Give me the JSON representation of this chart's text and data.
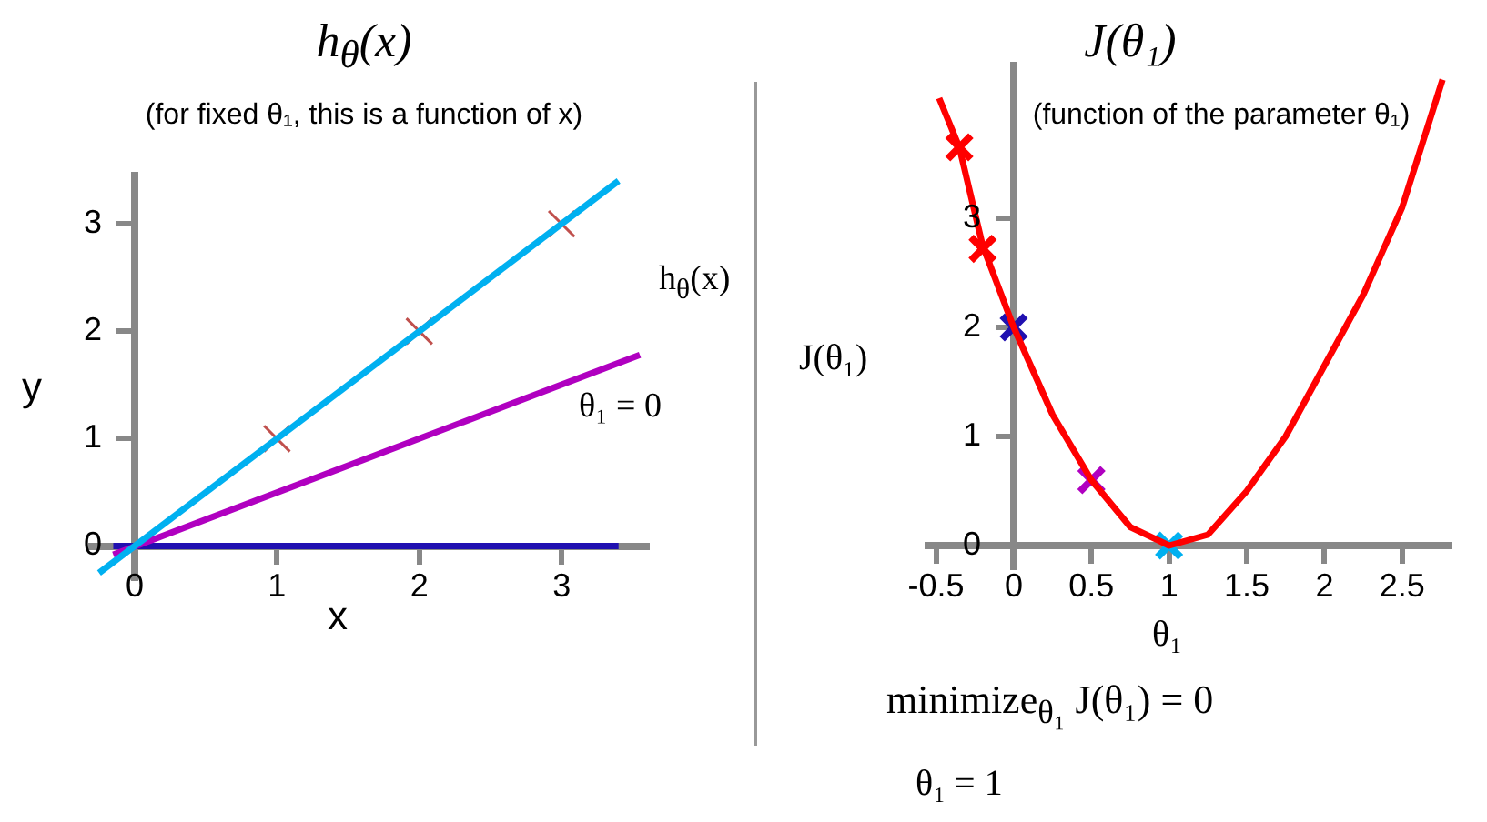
{
  "chart_data": [
    {
      "type": "line",
      "title": "h$_{θ}$(x)",
      "subtitle": "(for fixed θ₁, this is a function of x)",
      "xlabel": "x",
      "ylabel": "y",
      "annotations": [
        "h$_{θ}$(x)",
        "θ₁ = 0"
      ],
      "xlim": [
        -0.3,
        3.6
      ],
      "ylim": [
        -0.3,
        3.45
      ],
      "xticks": [
        0,
        1,
        2,
        3
      ],
      "yticks": [
        0,
        1,
        2,
        3
      ],
      "grid": false,
      "legend": false,
      "series": [
        {
          "color": "#00b0f0",
          "x": [
            -0.25,
            3.4
          ],
          "values": [
            -0.25,
            3.4
          ]
        },
        {
          "color": "#b000c0",
          "x": [
            -0.15,
            3.55
          ],
          "values": [
            -0.08,
            1.78
          ]
        },
        {
          "color": "#2010b0",
          "x": [
            -0.15,
            3.4
          ],
          "values": [
            0,
            0
          ]
        },
        {
          "type": "scatter",
          "marker": "cross",
          "color": "#c0504d",
          "x": [
            1,
            2,
            3
          ],
          "values": [
            1,
            2,
            3
          ]
        }
      ]
    },
    {
      "type": "line",
      "title": "J(θ₁)",
      "subtitle": "(function of the parameter θ₁)",
      "xlabel": "θ₁",
      "ylabel": "J(θ₁)",
      "annotations": [
        "minimize$_{θ₁}$ J(θ₁) = 0",
        "θ₁ = 1"
      ],
      "xlim": [
        -0.55,
        2.8
      ],
      "ylim": [
        -0.2,
        4.4
      ],
      "xticks": [
        -0.5,
        0,
        0.5,
        1,
        1.5,
        2,
        2.5
      ],
      "yticks": [
        0,
        1,
        2,
        3
      ],
      "grid": false,
      "legend": false,
      "series": [
        {
          "color": "#ff0000",
          "x": [
            -0.48,
            -0.35,
            -0.2,
            0,
            0.25,
            0.5,
            0.75,
            1,
            1.25,
            1.5,
            1.75,
            2,
            2.25,
            2.5,
            2.76
          ],
          "values": [
            4.1,
            3.65,
            2.75,
            2,
            1.2,
            0.6,
            0.17,
            0,
            0.1,
            0.5,
            1.0,
            1.65,
            2.3,
            3.1,
            4.27
          ]
        },
        {
          "type": "scatter",
          "marker": "cross",
          "colors": [
            "#ff0000",
            "#ff0000",
            "#2010b0",
            "#b000c0",
            "#00b0f0"
          ],
          "x": [
            -0.35,
            -0.2,
            0,
            0.5,
            1
          ],
          "values": [
            3.65,
            2.72,
            2,
            0.6,
            0
          ]
        }
      ]
    }
  ]
}
